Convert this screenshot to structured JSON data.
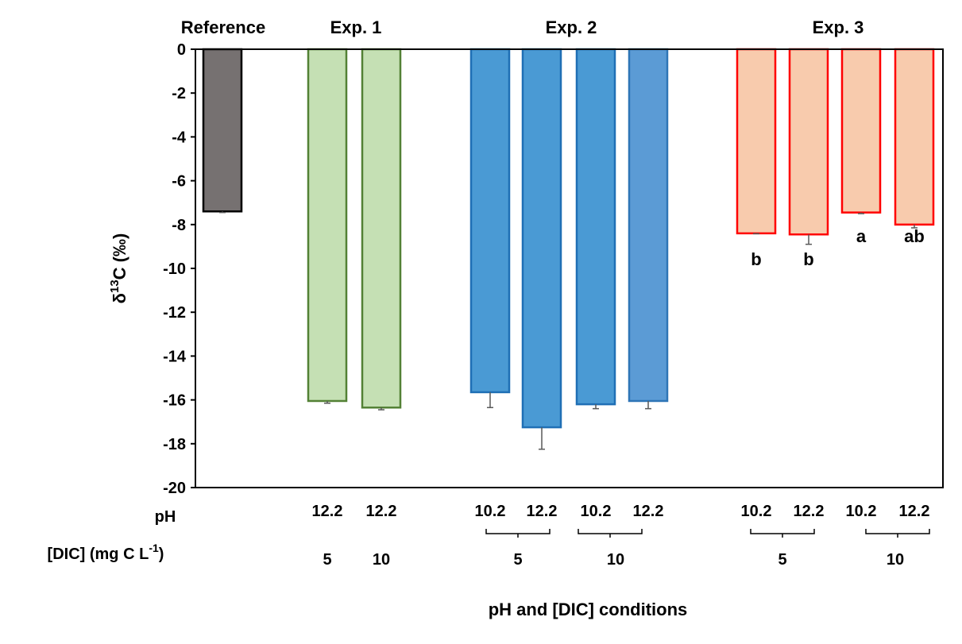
{
  "chart_data": {
    "type": "bar",
    "title": "",
    "xlabel": "pH and [DIC] conditions",
    "ylabel": {
      "prefix": "δ",
      "sup": "13",
      "suffix": "C (‰)"
    },
    "ylim": [
      -20,
      0
    ],
    "yticks": [
      "0",
      "-2",
      "-4",
      "-6",
      "-8",
      "-10",
      "-12",
      "-14",
      "-16",
      "-18",
      "-20"
    ],
    "grid": false,
    "legend": "none",
    "groups": [
      {
        "label": "Reference",
        "bars": [
          {
            "pH": "",
            "value": -7.4,
            "err": 0.05,
            "letter": ""
          }
        ]
      },
      {
        "label": "Exp. 1",
        "bars": [
          {
            "pH": "12.2",
            "value": -16.05,
            "err": 0.1,
            "letter": ""
          },
          {
            "pH": "12.2",
            "value": -16.35,
            "err": 0.1,
            "letter": ""
          }
        ]
      },
      {
        "label": "Exp. 2",
        "bars": [
          {
            "pH": "10.2",
            "value": -15.65,
            "err": 0.7,
            "letter": ""
          },
          {
            "pH": "12.2",
            "value": -17.25,
            "err": 1.0,
            "letter": ""
          },
          {
            "pH": "10.2",
            "value": -16.2,
            "err": 0.2,
            "letter": ""
          },
          {
            "pH": "12.2",
            "value": -16.05,
            "err": 0.35,
            "letter": ""
          }
        ]
      },
      {
        "label": "Exp. 3",
        "bars": [
          {
            "pH": "10.2",
            "value": -8.4,
            "err": 0.02,
            "letter": "b"
          },
          {
            "pH": "12.2",
            "value": -8.45,
            "err": 0.45,
            "letter": "b"
          },
          {
            "pH": "10.2",
            "value": -7.45,
            "err": 0.05,
            "letter": "a"
          },
          {
            "pH": "12.2",
            "value": -8.0,
            "err": 0.15,
            "letter": "ab"
          }
        ]
      }
    ],
    "dic_labels": {
      "exp1": [
        "5",
        "10"
      ],
      "exp2": [
        "5",
        "10"
      ],
      "exp3": [
        "5",
        "10"
      ]
    },
    "row_labels": {
      "ph": "pH",
      "dic": {
        "prefix": "[DIC] (mg C L",
        "sup": "-1",
        "suffix": ")"
      }
    }
  },
  "colors": {
    "reference_fill": "#767171",
    "reference_stroke": "#000000",
    "exp1_fill": "#c5e0b4",
    "exp1_stroke": "#538135",
    "exp2_fill": "#4a9ad4",
    "exp2_stroke": "#1f6fb5",
    "exp2_last_fill": "#5b9bd5",
    "exp2_last_stroke": "#2e75b6",
    "exp3_fill": "#f8cbad",
    "exp3_stroke": "#ff0000",
    "error_bar": "#595959"
  }
}
